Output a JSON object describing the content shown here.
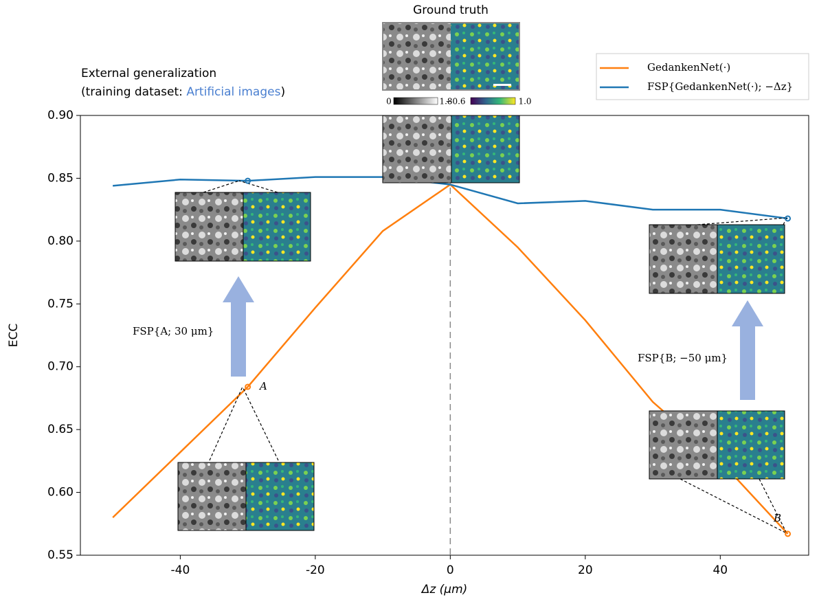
{
  "chart_data": {
    "type": "line",
    "title": "Ground truth",
    "subtitle": "External generalization",
    "subtitle_prefix": "(training dataset: ",
    "subtitle_highlight": "Artificial images",
    "subtitle_suffix": ")",
    "xlabel": "Δz (μm)",
    "ylabel": "ECC",
    "x": [
      -50,
      -40,
      -30,
      -20,
      -10,
      0,
      10,
      20,
      30,
      40,
      50
    ],
    "series": [
      {
        "name": "GedankenNet(·)",
        "color": "#ff7f0e",
        "values": [
          0.58,
          0.632,
          0.684,
          0.747,
          0.808,
          0.845,
          0.795,
          0.737,
          0.672,
          0.625,
          0.567
        ]
      },
      {
        "name": "FSP{GedankenNet(·); −Δz}",
        "color": "#1f77b4",
        "values": [
          0.844,
          0.849,
          0.848,
          0.851,
          0.851,
          0.845,
          0.83,
          0.832,
          0.825,
          0.825,
          0.818
        ]
      }
    ],
    "xlim": [
      -54.8,
      53.1
    ],
    "ylim": [
      0.55,
      0.9
    ],
    "xticks": [
      -40,
      -20,
      0,
      20,
      40
    ],
    "yticks": [
      0.55,
      {
        "value": 0.6,
        "label": "0.60"
      },
      0.65,
      {
        "value": 0.7,
        "label": "0.70"
      },
      0.75,
      {
        "value": 0.8,
        "label": "0.80"
      },
      0.85,
      {
        "value": 0.9,
        "label": "0.90"
      }
    ],
    "vline": 0,
    "legend": "upper right",
    "annotations": [
      "FSP{A; 30 μm}",
      "FSP{B; −50 μm}",
      "A",
      "B"
    ],
    "colorbar_labels": [
      "0",
      "1.8",
      "−0.6",
      "1.0"
    ]
  }
}
